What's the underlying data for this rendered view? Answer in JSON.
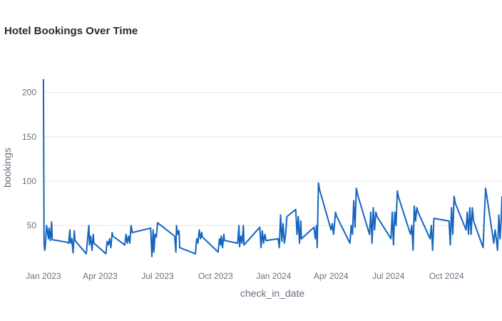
{
  "chart_data": {
    "type": "line",
    "title": "Hotel Bookings Over Time",
    "xlabel": "check_in_date",
    "ylabel": "bookings",
    "ylim": [
      5,
      215
    ],
    "yticks": [
      50,
      100,
      150,
      200
    ],
    "xlim": [
      "2022-12-31",
      "2024-12-28"
    ],
    "xticks": [
      {
        "date": "2023-01-01",
        "label": "Jan 2023"
      },
      {
        "date": "2023-04-01",
        "label": "Apr 2023"
      },
      {
        "date": "2023-07-01",
        "label": "Jul 2023"
      },
      {
        "date": "2023-10-01",
        "label": "Oct 2023"
      },
      {
        "date": "2024-01-01",
        "label": "Jan 2024"
      },
      {
        "date": "2024-04-01",
        "label": "Apr 2024"
      },
      {
        "date": "2024-07-01",
        "label": "Jul 2024"
      },
      {
        "date": "2024-10-01",
        "label": "Oct 2024"
      }
    ],
    "grid": true,
    "color": "#1565c0",
    "series": [
      {
        "points": [
          [
            "2023-01-01",
            215
          ],
          [
            "2023-01-02",
            30
          ],
          [
            "2023-01-03",
            22
          ],
          [
            "2023-01-04",
            26
          ],
          [
            "2023-01-06",
            50
          ],
          [
            "2023-01-08",
            40
          ],
          [
            "2023-01-09",
            35
          ],
          [
            "2023-01-10",
            47
          ],
          [
            "2023-01-12",
            33
          ],
          [
            "2023-01-14",
            54
          ],
          [
            "2023-01-15",
            34
          ],
          [
            "2023-02-08",
            31
          ],
          [
            "2023-02-10",
            30
          ],
          [
            "2023-02-12",
            45
          ],
          [
            "2023-02-13",
            30
          ],
          [
            "2023-02-15",
            35
          ],
          [
            "2023-02-17",
            19
          ],
          [
            "2023-02-19",
            44
          ],
          [
            "2023-02-20",
            33
          ],
          [
            "2023-03-10",
            18
          ],
          [
            "2023-03-12",
            35
          ],
          [
            "2023-03-14",
            50
          ],
          [
            "2023-03-15",
            28
          ],
          [
            "2023-03-17",
            38
          ],
          [
            "2023-03-19",
            22
          ],
          [
            "2023-03-21",
            40
          ],
          [
            "2023-03-22",
            30
          ],
          [
            "2023-04-10",
            18
          ],
          [
            "2023-04-12",
            32
          ],
          [
            "2023-04-14",
            28
          ],
          [
            "2023-04-16",
            35
          ],
          [
            "2023-04-18",
            25
          ],
          [
            "2023-04-20",
            42
          ],
          [
            "2023-04-21",
            38
          ],
          [
            "2023-05-10",
            28
          ],
          [
            "2023-05-12",
            40
          ],
          [
            "2023-05-14",
            30
          ],
          [
            "2023-05-16",
            38
          ],
          [
            "2023-05-18",
            30
          ],
          [
            "2023-05-20",
            50
          ],
          [
            "2023-05-22",
            42
          ],
          [
            "2023-06-20",
            47
          ],
          [
            "2023-06-22",
            15
          ],
          [
            "2023-06-24",
            45
          ],
          [
            "2023-06-25",
            20
          ],
          [
            "2023-06-27",
            40
          ],
          [
            "2023-06-29",
            37
          ],
          [
            "2023-07-01",
            53
          ],
          [
            "2023-07-28",
            38
          ],
          [
            "2023-07-30",
            20
          ],
          [
            "2023-07-31",
            50
          ],
          [
            "2023-08-02",
            40
          ],
          [
            "2023-08-04",
            44
          ],
          [
            "2023-08-05",
            25
          ],
          [
            "2023-08-30",
            18
          ],
          [
            "2023-09-01",
            35
          ],
          [
            "2023-09-03",
            30
          ],
          [
            "2023-09-05",
            45
          ],
          [
            "2023-09-07",
            35
          ],
          [
            "2023-09-09",
            42
          ],
          [
            "2023-09-10",
            37
          ],
          [
            "2023-10-05",
            20
          ],
          [
            "2023-10-07",
            35
          ],
          [
            "2023-10-09",
            28
          ],
          [
            "2023-10-10",
            38
          ],
          [
            "2023-10-12",
            25
          ],
          [
            "2023-10-14",
            40
          ],
          [
            "2023-10-15",
            33
          ],
          [
            "2023-11-05",
            30
          ],
          [
            "2023-11-07",
            50
          ],
          [
            "2023-11-08",
            26
          ],
          [
            "2023-11-10",
            38
          ],
          [
            "2023-11-12",
            30
          ],
          [
            "2023-11-14",
            50
          ],
          [
            "2023-11-15",
            28
          ],
          [
            "2023-12-10",
            48
          ],
          [
            "2023-12-12",
            25
          ],
          [
            "2023-12-14",
            44
          ],
          [
            "2023-12-16",
            30
          ],
          [
            "2023-12-18",
            40
          ],
          [
            "2023-12-20",
            33
          ],
          [
            "2024-01-08",
            35
          ],
          [
            "2024-01-10",
            25
          ],
          [
            "2024-01-12",
            62
          ],
          [
            "2024-01-14",
            32
          ],
          [
            "2024-01-16",
            52
          ],
          [
            "2024-01-18",
            30
          ],
          [
            "2024-01-20",
            40
          ],
          [
            "2024-01-22",
            60
          ],
          [
            "2024-02-05",
            68
          ],
          [
            "2024-02-07",
            40
          ],
          [
            "2024-02-09",
            60
          ],
          [
            "2024-02-11",
            30
          ],
          [
            "2024-02-13",
            55
          ],
          [
            "2024-02-14",
            35
          ],
          [
            "2024-03-05",
            48
          ],
          [
            "2024-03-07",
            35
          ],
          [
            "2024-03-09",
            50
          ],
          [
            "2024-03-10",
            25
          ],
          [
            "2024-03-12",
            98
          ],
          [
            "2024-03-14",
            90
          ],
          [
            "2024-04-01",
            45
          ],
          [
            "2024-04-03",
            52
          ],
          [
            "2024-04-05",
            40
          ],
          [
            "2024-04-06",
            48
          ],
          [
            "2024-04-08",
            65
          ],
          [
            "2024-04-10",
            60
          ],
          [
            "2024-05-01",
            30
          ],
          [
            "2024-05-03",
            50
          ],
          [
            "2024-05-05",
            40
          ],
          [
            "2024-05-07",
            78
          ],
          [
            "2024-05-09",
            48
          ],
          [
            "2024-05-11",
            92
          ],
          [
            "2024-05-13",
            85
          ],
          [
            "2024-06-01",
            40
          ],
          [
            "2024-06-03",
            65
          ],
          [
            "2024-06-05",
            30
          ],
          [
            "2024-06-07",
            70
          ],
          [
            "2024-06-09",
            45
          ],
          [
            "2024-06-11",
            65
          ],
          [
            "2024-06-13",
            60
          ],
          [
            "2024-07-05",
            35
          ],
          [
            "2024-07-07",
            65
          ],
          [
            "2024-07-09",
            28
          ],
          [
            "2024-07-11",
            65
          ],
          [
            "2024-07-13",
            50
          ],
          [
            "2024-07-15",
            89
          ],
          [
            "2024-07-17",
            82
          ],
          [
            "2024-08-05",
            40
          ],
          [
            "2024-08-07",
            50
          ],
          [
            "2024-08-09",
            22
          ],
          [
            "2024-08-11",
            72
          ],
          [
            "2024-08-13",
            55
          ],
          [
            "2024-08-15",
            70
          ],
          [
            "2024-08-17",
            65
          ],
          [
            "2024-09-05",
            35
          ],
          [
            "2024-09-07",
            50
          ],
          [
            "2024-09-09",
            22
          ],
          [
            "2024-09-11",
            58
          ],
          [
            "2024-10-05",
            55
          ],
          [
            "2024-10-07",
            28
          ],
          [
            "2024-10-09",
            70
          ],
          [
            "2024-10-11",
            40
          ],
          [
            "2024-10-13",
            83
          ],
          [
            "2024-10-15",
            75
          ],
          [
            "2024-11-01",
            45
          ],
          [
            "2024-11-03",
            65
          ],
          [
            "2024-11-05",
            40
          ],
          [
            "2024-11-07",
            70
          ],
          [
            "2024-11-09",
            40
          ],
          [
            "2024-11-11",
            70
          ],
          [
            "2024-11-13",
            55
          ],
          [
            "2024-11-28",
            25
          ],
          [
            "2024-11-30",
            60
          ],
          [
            "2024-12-02",
            92
          ],
          [
            "2024-12-15",
            30
          ],
          [
            "2024-12-17",
            45
          ],
          [
            "2024-12-19",
            35
          ],
          [
            "2024-12-21",
            22
          ],
          [
            "2024-12-23",
            62
          ],
          [
            "2024-12-25",
            35
          ],
          [
            "2024-12-27",
            60
          ],
          [
            "2024-12-28",
            83
          ]
        ]
      }
    ]
  }
}
